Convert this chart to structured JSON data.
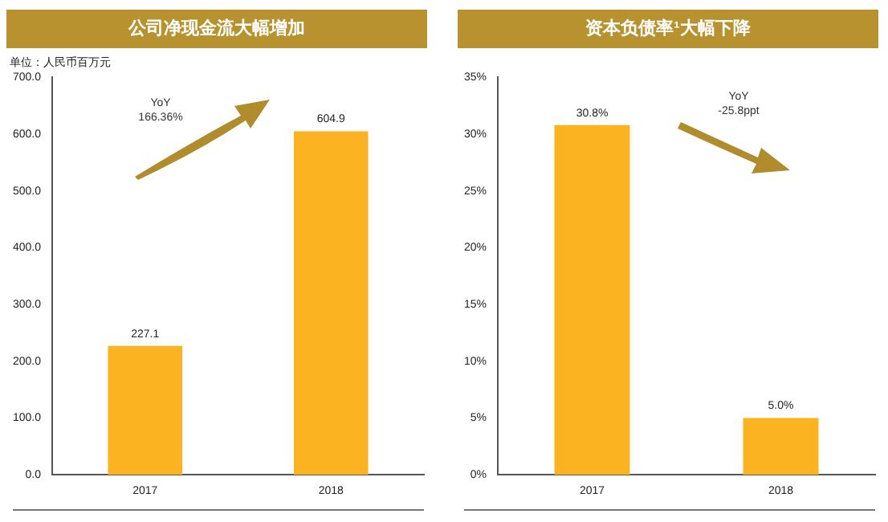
{
  "chart_data": [
    {
      "type": "bar",
      "title": "公司净现金流大幅增加",
      "subtitle": "单位：人民币百万元",
      "categories": [
        "2017",
        "2018"
      ],
      "values": [
        227.1,
        604.9
      ],
      "color": "#fbb321",
      "ylim": [
        0,
        700
      ],
      "yticks": [
        {
          "value": 0,
          "label": "0.0"
        },
        {
          "value": 100,
          "label": "100.0"
        },
        {
          "value": 200,
          "label": "200.0"
        },
        {
          "value": 300,
          "label": "300.0"
        },
        {
          "value": 400,
          "label": "400.0"
        },
        {
          "value": 500,
          "label": "500.0"
        },
        {
          "value": 600,
          "label": "600.0"
        },
        {
          "value": 700,
          "label": "700.0"
        }
      ],
      "grid": false,
      "legend": false,
      "data_labels": true,
      "annotations": [
        "YoY\n166.36%"
      ]
    },
    {
      "type": "bar",
      "title": "资本负债率¹大幅下降",
      "categories": [
        "2017",
        "2018"
      ],
      "values": [
        30.8,
        5.0
      ],
      "value_labels": [
        "30.8%",
        "5.0%"
      ],
      "color": "#fbb321",
      "ylim": [
        0,
        35
      ],
      "yticks": [
        {
          "value": 0,
          "label": "0%"
        },
        {
          "value": 5,
          "label": "5%"
        },
        {
          "value": 10,
          "label": "10%"
        },
        {
          "value": 15,
          "label": "15%"
        },
        {
          "value": 20,
          "label": "20%"
        },
        {
          "value": 25,
          "label": "25%"
        },
        {
          "value": 30,
          "label": "30%"
        },
        {
          "value": 35,
          "label": "35%"
        }
      ],
      "grid": false,
      "legend": false,
      "annotations": [
        "YoY\n-25.8ppt"
      ]
    }
  ]
}
